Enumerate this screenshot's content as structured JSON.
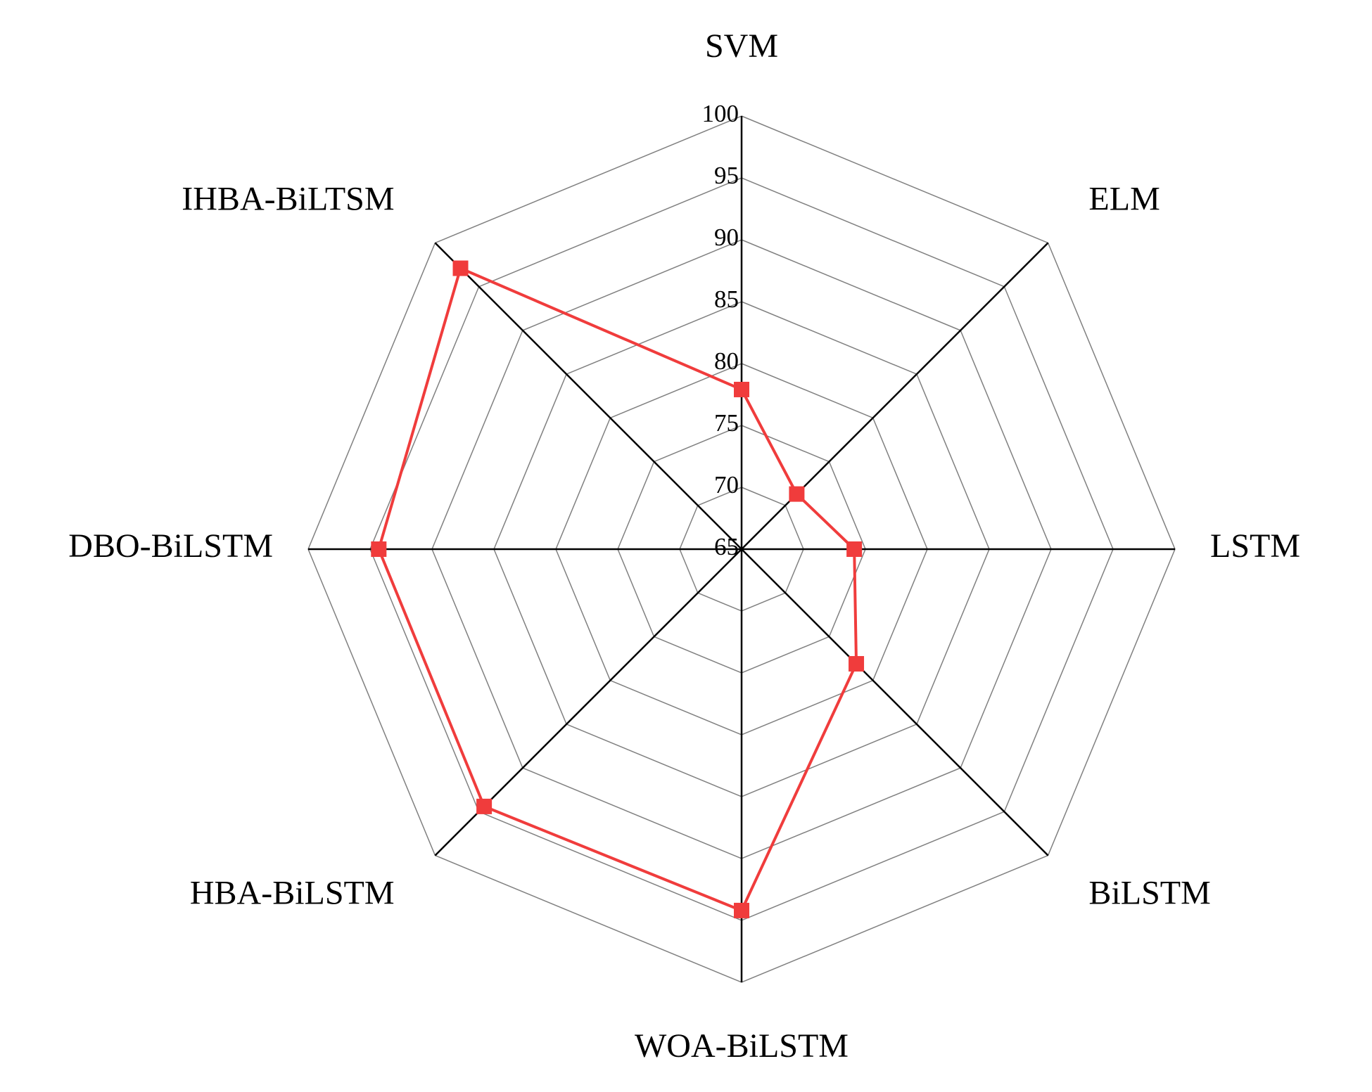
{
  "chart_data": {
    "type": "radar",
    "categories": [
      "SVM",
      "ELM",
      "LSTM",
      "BiLSTM",
      "WOA-BiLSTM",
      "HBA-BiLSTM",
      "DBO-BiLSTM",
      "IHBA-BiLTSM"
    ],
    "values": [
      77.9,
      71.3,
      74.1,
      78.1,
      94.2,
      94.4,
      94.3,
      97.1
    ],
    "color": "#f03c3c",
    "rlim": [
      65,
      100
    ],
    "rticks": [
      65,
      70,
      75,
      80,
      85,
      90,
      95,
      100
    ],
    "grid": true
  }
}
